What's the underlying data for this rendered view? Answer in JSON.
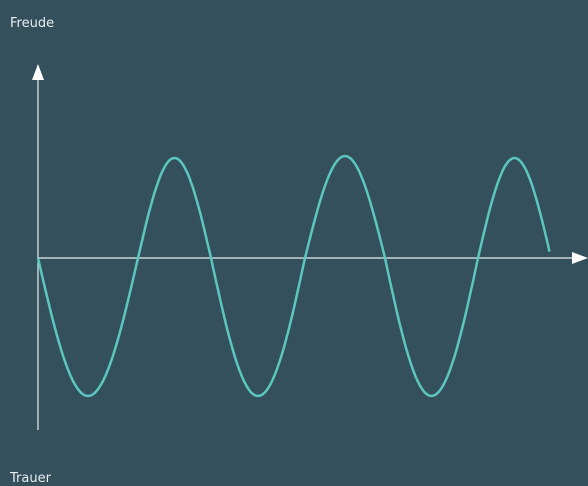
{
  "labels": {
    "top": "Freude",
    "bottom": "Trauer"
  }
}
